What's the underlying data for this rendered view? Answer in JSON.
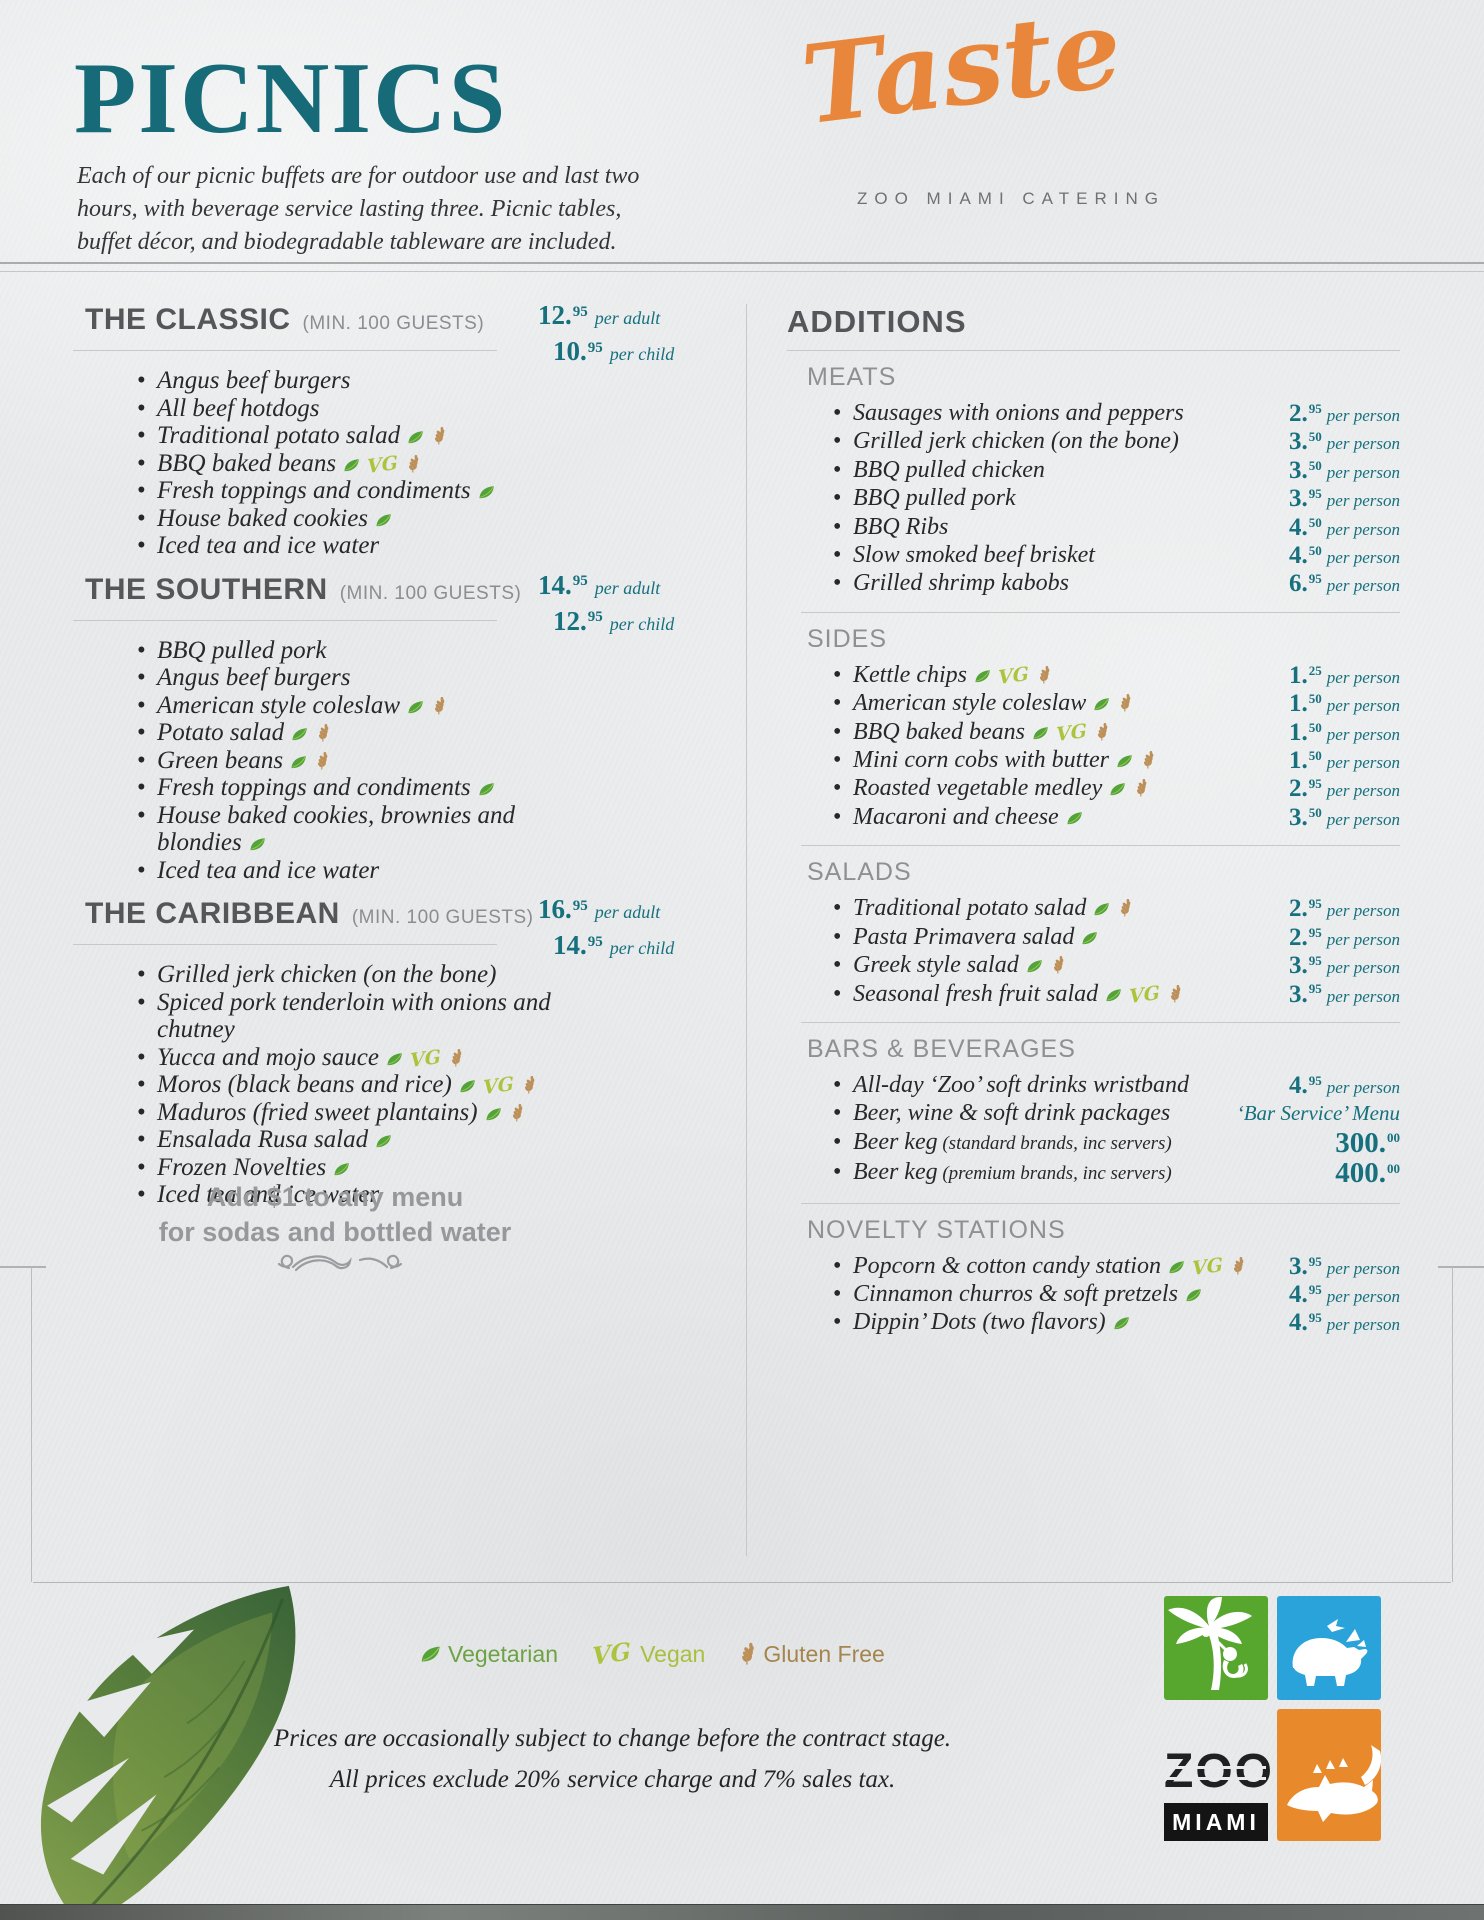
{
  "header": {
    "title": "PICNICS",
    "intro": "Each of our picnic buffets are for outdoor use and last two hours, with beverage service lasting three. Picnic tables, buffet décor, and biodegradable tableware are included.",
    "brand_script": "Taste",
    "brand_subtitle": "ZOO MIAMI CATERING"
  },
  "packages": [
    {
      "name": "THE CLASSIC",
      "min_guests": "(MIN. 100 GUESTS)",
      "prices": [
        {
          "amount": "12",
          "cents": "95",
          "unit": "per adult"
        },
        {
          "amount": "10",
          "cents": "95",
          "unit": "per child"
        }
      ],
      "items": [
        {
          "text": "Angus beef burgers"
        },
        {
          "text": "All beef hotdogs"
        },
        {
          "text": "Traditional potato salad",
          "icons": [
            "leaf",
            "wheat"
          ]
        },
        {
          "text": "BBQ baked beans",
          "icons": [
            "leaf",
            "vg",
            "wheat"
          ]
        },
        {
          "text": "Fresh toppings and condiments",
          "icons": [
            "leaf"
          ]
        },
        {
          "text": "House baked cookies",
          "icons": [
            "leaf"
          ]
        },
        {
          "text": "Iced tea and ice water"
        }
      ]
    },
    {
      "name": "THE SOUTHERN",
      "min_guests": "(MIN. 100 GUESTS)",
      "prices": [
        {
          "amount": "14",
          "cents": "95",
          "unit": "per adult"
        },
        {
          "amount": "12",
          "cents": "95",
          "unit": "per child"
        }
      ],
      "items": [
        {
          "text": "BBQ pulled pork"
        },
        {
          "text": "Angus beef burgers"
        },
        {
          "text": "American style coleslaw",
          "icons": [
            "leaf",
            "wheat"
          ]
        },
        {
          "text": "Potato salad",
          "icons": [
            "leaf",
            "wheat"
          ]
        },
        {
          "text": "Green beans",
          "icons": [
            "leaf",
            "wheat"
          ]
        },
        {
          "text": "Fresh toppings and condiments",
          "icons": [
            "leaf"
          ]
        },
        {
          "text": "House baked cookies, brownies and blondies",
          "icons": [
            "leaf"
          ]
        },
        {
          "text": "Iced tea and ice water"
        }
      ]
    },
    {
      "name": "THE CARIBBEAN",
      "min_guests": "(MIN. 100 GUESTS)",
      "prices": [
        {
          "amount": "16",
          "cents": "95",
          "unit": "per adult"
        },
        {
          "amount": "14",
          "cents": "95",
          "unit": "per child"
        }
      ],
      "items": [
        {
          "text": "Grilled jerk chicken (on the bone)"
        },
        {
          "text": "Spiced pork tenderloin with onions and chutney"
        },
        {
          "text": "Yucca and mojo sauce",
          "icons": [
            "leaf",
            "vg",
            "wheat"
          ]
        },
        {
          "text": "Moros (black beans and rice)",
          "icons": [
            "leaf",
            "vg",
            "wheat"
          ]
        },
        {
          "text": "Maduros (fried sweet plantains)",
          "icons": [
            "leaf",
            "wheat"
          ]
        },
        {
          "text": "Ensalada Rusa salad",
          "icons": [
            "leaf"
          ]
        },
        {
          "text": "Frozen Novelties",
          "icons": [
            "leaf"
          ]
        },
        {
          "text": "Iced tea and ice water"
        }
      ]
    }
  ],
  "note": {
    "line1": "Add $1 to any menu",
    "line2": "for sodas and bottled water"
  },
  "additions": {
    "title": "ADDITIONS",
    "groups": [
      {
        "name": "MEATS",
        "items": [
          {
            "text": "Sausages with onions and peppers",
            "price": {
              "amount": "2",
              "cents": "95",
              "unit": "per person"
            }
          },
          {
            "text": "Grilled jerk chicken (on the bone)",
            "price": {
              "amount": "3",
              "cents": "50",
              "unit": "per person"
            }
          },
          {
            "text": "BBQ pulled chicken",
            "price": {
              "amount": "3",
              "cents": "50",
              "unit": "per person"
            }
          },
          {
            "text": "BBQ pulled pork",
            "price": {
              "amount": "3",
              "cents": "95",
              "unit": "per person"
            }
          },
          {
            "text": "BBQ Ribs",
            "price": {
              "amount": "4",
              "cents": "50",
              "unit": "per person"
            }
          },
          {
            "text": "Slow smoked beef brisket",
            "price": {
              "amount": "4",
              "cents": "50",
              "unit": "per person"
            }
          },
          {
            "text": "Grilled shrimp kabobs",
            "price": {
              "amount": "6",
              "cents": "95",
              "unit": "per person"
            }
          }
        ]
      },
      {
        "name": "SIDES",
        "items": [
          {
            "text": "Kettle chips",
            "icons": [
              "leaf",
              "vg",
              "wheat"
            ],
            "price": {
              "amount": "1",
              "cents": "25",
              "unit": "per person"
            }
          },
          {
            "text": "American style coleslaw",
            "icons": [
              "leaf",
              "wheat"
            ],
            "price": {
              "amount": "1",
              "cents": "50",
              "unit": "per person"
            }
          },
          {
            "text": "BBQ baked beans",
            "icons": [
              "leaf",
              "vg",
              "wheat"
            ],
            "price": {
              "amount": "1",
              "cents": "50",
              "unit": "per person"
            }
          },
          {
            "text": "Mini corn cobs with butter",
            "icons": [
              "leaf",
              "wheat"
            ],
            "price": {
              "amount": "1",
              "cents": "50",
              "unit": "per person"
            }
          },
          {
            "text": "Roasted vegetable medley",
            "icons": [
              "leaf",
              "wheat"
            ],
            "price": {
              "amount": "2",
              "cents": "95",
              "unit": "per person"
            }
          },
          {
            "text": "Macaroni and cheese",
            "icons": [
              "leaf"
            ],
            "price": {
              "amount": "3",
              "cents": "50",
              "unit": "per person"
            }
          }
        ]
      },
      {
        "name": "SALADS",
        "items": [
          {
            "text": "Traditional potato salad",
            "icons": [
              "leaf",
              "wheat"
            ],
            "price": {
              "amount": "2",
              "cents": "95",
              "unit": "per person"
            }
          },
          {
            "text": "Pasta Primavera salad",
            "icons": [
              "leaf"
            ],
            "price": {
              "amount": "2",
              "cents": "95",
              "unit": "per person"
            }
          },
          {
            "text": "Greek style salad",
            "icons": [
              "leaf",
              "wheat"
            ],
            "price": {
              "amount": "3",
              "cents": "95",
              "unit": "per person"
            }
          },
          {
            "text": "Seasonal fresh fruit salad",
            "icons": [
              "leaf",
              "vg",
              "wheat"
            ],
            "price": {
              "amount": "3",
              "cents": "95",
              "unit": "per person"
            }
          }
        ]
      },
      {
        "name": "BARS & BEVERAGES",
        "items": [
          {
            "text": "All-day ‘Zoo’ soft drinks wristband",
            "price": {
              "amount": "4",
              "cents": "95",
              "unit": "per person"
            }
          },
          {
            "text": "Beer, wine & soft drink packages",
            "price_text": "‘Bar Service’ Menu"
          },
          {
            "text": "Beer keg",
            "suffix": "(standard brands, inc servers)",
            "price": {
              "amount": "300",
              "cents": "00",
              "unit": ""
            }
          },
          {
            "text": "Beer keg",
            "suffix": "(premium brands, inc servers)",
            "price": {
              "amount": "400",
              "cents": "00",
              "unit": ""
            }
          }
        ]
      },
      {
        "name": "NOVELTY STATIONS",
        "items": [
          {
            "text": "Popcorn & cotton candy station",
            "icons": [
              "leaf",
              "vg",
              "wheat"
            ],
            "price": {
              "amount": "3",
              "cents": "95",
              "unit": "per person"
            }
          },
          {
            "text": "Cinnamon churros & soft pretzels",
            "icons": [
              "leaf"
            ],
            "price": {
              "amount": "4",
              "cents": "95",
              "unit": "per person"
            }
          },
          {
            "text": "Dippin’ Dots (two flavors)",
            "icons": [
              "leaf"
            ],
            "price": {
              "amount": "4",
              "cents": "95",
              "unit": "per person"
            }
          }
        ]
      }
    ]
  },
  "legend": [
    {
      "icon": "leaf",
      "label": "Vegetarian"
    },
    {
      "icon": "vg",
      "label": "Vegan"
    },
    {
      "icon": "wheat",
      "label": "Gluten Free"
    }
  ],
  "footer": {
    "note1": "Prices are occasionally subject to change before the contract stage.",
    "note2": "All prices exclude 20% service charge and 7% sales tax.",
    "zoo": "ZOO",
    "miami": "MIAMI"
  },
  "colors": {
    "title_teal": "#176b78",
    "price_teal": "#17707e",
    "brand_orange": "#e8873b",
    "heading_gray": "#54565a",
    "leaf_green": "#54a33a",
    "vegan_lime": "#aec33d",
    "wheat_tan": "#b7874f"
  }
}
